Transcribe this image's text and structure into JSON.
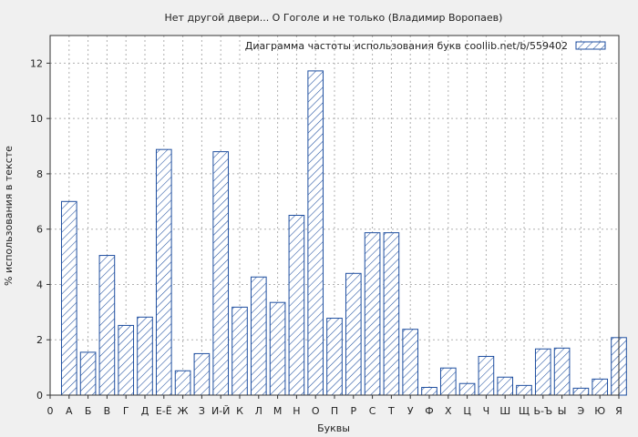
{
  "chart_data": {
    "type": "bar",
    "title": "Нет другой двери... О Гоголе и не только (Владимир Воропаев)",
    "xlabel": "Буквы",
    "ylabel": "% использования в тексте",
    "legend": {
      "label": "Диаграмма частоты использования букв  coollib.net/b/559402",
      "position": "top-right"
    },
    "x_ticks": [
      "0",
      "А",
      "Б",
      "В",
      "Г",
      "Д",
      "Е-Ё",
      "Ж",
      "З",
      "И-Й",
      "К",
      "Л",
      "М",
      "Н",
      "О",
      "П",
      "Р",
      "С",
      "Т",
      "У",
      "Ф",
      "Х",
      "Ц",
      "Ч",
      "Ш",
      "Щ",
      "Ь-Ъ",
      "Ы",
      "Э",
      "Ю",
      "Я"
    ],
    "categories": [
      "А",
      "Б",
      "В",
      "Г",
      "Д",
      "Е-Ё",
      "Ж",
      "З",
      "И-Й",
      "К",
      "Л",
      "М",
      "Н",
      "О",
      "П",
      "Р",
      "С",
      "Т",
      "У",
      "Ф",
      "Х",
      "Ц",
      "Ч",
      "Ш",
      "Щ",
      "Ь-Ъ",
      "Ы",
      "Э",
      "Ю",
      "Я"
    ],
    "values": [
      7.0,
      1.55,
      5.05,
      2.52,
      2.82,
      8.88,
      0.88,
      1.5,
      8.8,
      3.18,
      4.27,
      3.35,
      6.5,
      11.72,
      2.78,
      4.4,
      5.87,
      5.87,
      2.38,
      0.28,
      0.98,
      0.42,
      1.4,
      0.65,
      0.35,
      1.67,
      1.7,
      0.25,
      0.58,
      2.08
    ],
    "ylim": [
      0,
      13
    ],
    "yticks": [
      0,
      2,
      4,
      6,
      8,
      10,
      12
    ],
    "grid": true,
    "bar_color": "#1f4fa0",
    "background": "#f0f0f0",
    "plot_background": "#ffffff"
  }
}
